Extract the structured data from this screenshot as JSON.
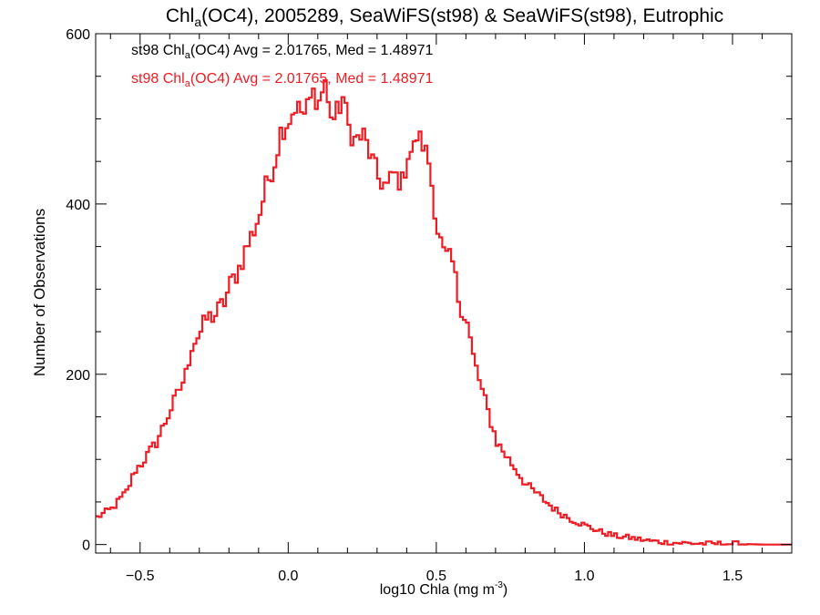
{
  "chart_data": {
    "type": "line",
    "title_parts": {
      "a": "Chl",
      "sub": "a",
      "b": "(OC4), 2005289, SeaWiFS(st98) & SeaWiFS(st98), Eutrophic"
    },
    "xlabel_parts": {
      "a": "log10 Chla (mg m",
      "sup": "-3",
      "b": ")"
    },
    "ylabel": "Number of Observations",
    "xlim": [
      -0.65,
      1.7
    ],
    "ylim": [
      -10,
      600
    ],
    "xticks": [
      {
        "value": -0.5,
        "label": "−0.5"
      },
      {
        "value": 0.0,
        "label": "0.0"
      },
      {
        "value": 0.5,
        "label": "0.5"
      },
      {
        "value": 1.0,
        "label": "1.0"
      },
      {
        "value": 1.5,
        "label": "1.5"
      }
    ],
    "yticks": [
      {
        "value": 0,
        "label": "0"
      },
      {
        "value": 200,
        "label": "200"
      },
      {
        "value": 400,
        "label": "400"
      },
      {
        "value": 600,
        "label": "600"
      }
    ],
    "grid": false,
    "histogram_bin_width": 0.01,
    "series": [
      {
        "color": "#ee1c24",
        "x": [
          -0.65,
          -0.6,
          -0.55,
          -0.52,
          -0.5,
          -0.45,
          -0.4,
          -0.38,
          -0.35,
          -0.33,
          -0.3,
          -0.28,
          -0.25,
          -0.22,
          -0.2,
          -0.17,
          -0.15,
          -0.12,
          -0.1,
          -0.08,
          -0.05,
          -0.03,
          0.0,
          0.02,
          0.05,
          0.08,
          0.1,
          0.12,
          0.13,
          0.15,
          0.17,
          0.18,
          0.2,
          0.22,
          0.25,
          0.27,
          0.3,
          0.33,
          0.35,
          0.38,
          0.4,
          0.42,
          0.43,
          0.45,
          0.47,
          0.5,
          0.52,
          0.55,
          0.57,
          0.6,
          0.62,
          0.65,
          0.7,
          0.75,
          0.8,
          0.85,
          0.9,
          0.95,
          1.0,
          1.05,
          1.1,
          1.15,
          1.2,
          1.25,
          1.3,
          1.4,
          1.5,
          1.6,
          1.7
        ],
        "y": [
          32,
          42,
          62,
          88,
          95,
          120,
          160,
          175,
          200,
          235,
          250,
          265,
          270,
          285,
          305,
          325,
          345,
          370,
          390,
          420,
          450,
          485,
          500,
          515,
          505,
          530,
          520,
          545,
          515,
          500,
          515,
          525,
          490,
          475,
          480,
          460,
          430,
          420,
          435,
          425,
          460,
          465,
          480,
          470,
          450,
          370,
          340,
          330,
          290,
          260,
          220,
          180,
          120,
          95,
          70,
          55,
          40,
          30,
          22,
          15,
          10,
          8,
          5,
          3,
          2,
          1,
          1,
          0,
          0
        ]
      }
    ],
    "annotations": [
      {
        "color": "#000000",
        "parts": {
          "a": "st98 Chl",
          "sub": "a",
          "b": "(OC4) Avg = 2.01765, Med = 1.48971"
        }
      },
      {
        "color": "#ee1c24",
        "parts": {
          "a": "st98 Chl",
          "sub": "a",
          "b": "(OC4) Avg = 2.01765, Med = 1.48971"
        }
      }
    ]
  }
}
